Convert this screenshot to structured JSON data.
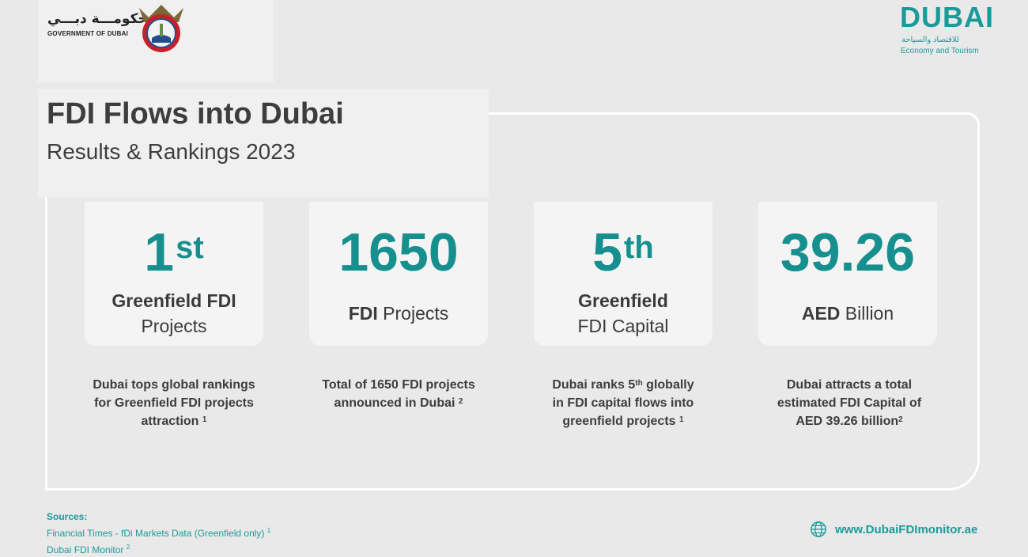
{
  "header": {
    "gov_arabic": "حكومـــة دبـــي",
    "gov_english": "GOVERNMENT OF DUBAI",
    "det_word": "DUBAI",
    "det_arabic": "للاقتصاد والسياحة",
    "det_english": "Economy and Tourism"
  },
  "title": "FDI Flows into Dubai",
  "subtitle": "Results & Rankings 2023",
  "cards": [
    {
      "value": "1",
      "sup": "st",
      "line1": "Greenfield FDI",
      "line2": "Projects",
      "desc_parts": [
        "Dubai tops global rankings",
        "for Greenfield FDI projects",
        "attraction"
      ],
      "desc_ref": "1"
    },
    {
      "value": "1650",
      "bold": "FDI",
      "rest": " Projects",
      "desc_parts": [
        "Total of 1650 FDI projects",
        "announced in Dubai"
      ],
      "desc_ref": "2"
    },
    {
      "value": "5",
      "sup": "th",
      "line1": "Greenfield",
      "line2": "FDI Capital",
      "desc_a": "Dubai ranks 5",
      "desc_sup": "th",
      "desc_b": " globally",
      "desc_parts": [
        "in FDI capital flows into",
        "greenfield projects"
      ],
      "desc_ref": "1"
    },
    {
      "value": "39.26",
      "bold": "AED",
      "rest": " Billion",
      "desc_parts": [
        "Dubai attracts a total",
        "estimated FDI Capital of",
        "AED 39.26 billion"
      ],
      "desc_ref": "2"
    }
  ],
  "sources": {
    "heading": "Sources:",
    "items": [
      {
        "text": "Financial Times - fDi Markets Data (Greenfield only)",
        "ref": "1"
      },
      {
        "text": "Dubai FDI Monitor",
        "ref": "2"
      }
    ]
  },
  "website": "www.DubaiFDImonitor.ae",
  "colors": {
    "accent": "#178f8f",
    "background": "#e9e9e9",
    "card": "#f4f4f4",
    "text": "#3a3a3a"
  },
  "icons": [
    "government-emblem-icon",
    "globe-icon"
  ]
}
